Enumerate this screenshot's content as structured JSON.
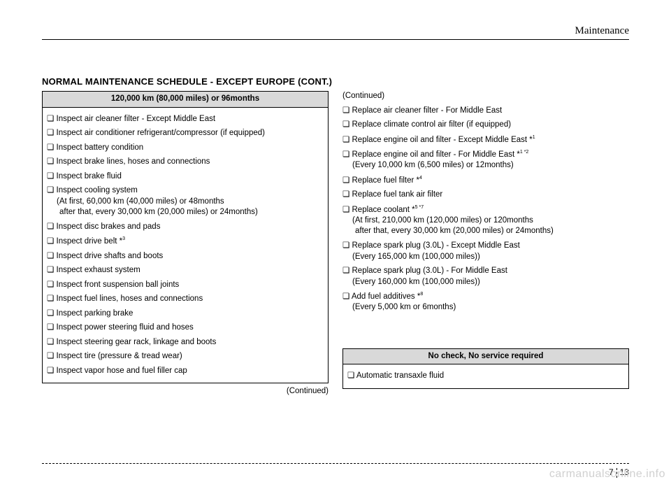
{
  "section": "Maintenance",
  "heading": "NORMAL MAINTENANCE SCHEDULE - EXCEPT EUROPE (CONT.)",
  "left": {
    "header": "120,000 km (80,000 miles) or 96months",
    "items": [
      {
        "text": "❏ Inspect air cleaner filter - Except Middle East"
      },
      {
        "text": "❏ Inspect air conditioner refrigerant/compressor (if equipped)"
      },
      {
        "text": "❏ Inspect battery condition"
      },
      {
        "text": "❏ Inspect brake lines, hoses and connections"
      },
      {
        "text": "❏ Inspect brake fluid"
      },
      {
        "text": "❏ Inspect cooling system",
        "sub1": "(At first, 60,000 km (40,000 miles) or 48months",
        "sub2": "after that, every 30,000 km (20,000 miles) or 24months)"
      },
      {
        "text": "❏ Inspect disc brakes and pads"
      },
      {
        "text": "❏ Inspect drive belt  *",
        "sup": "3"
      },
      {
        "text": "❏ Inspect drive shafts and boots"
      },
      {
        "text": "❏ Inspect exhaust system"
      },
      {
        "text": "❏ Inspect front suspension ball joints"
      },
      {
        "text": "❏ Inspect fuel lines, hoses and connections"
      },
      {
        "text": "❏ Inspect parking brake"
      },
      {
        "text": "❏ Inspect power steering fluid and hoses"
      },
      {
        "text": "❏ Inspect steering gear rack, linkage and boots"
      },
      {
        "text": "❏ Inspect tire (pressure & tread wear)"
      },
      {
        "text": "❏ Inspect vapor hose and fuel filler cap"
      }
    ],
    "continued": "(Continued)"
  },
  "right": {
    "continued_top": "(Continued)",
    "items": [
      {
        "text": "❏ Replace air cleaner filter - For Middle East"
      },
      {
        "text": "❏ Replace climate control air filter (if equipped)"
      },
      {
        "text": "❏ Replace engine oil and filter - Except Middle East *",
        "sup": "1"
      },
      {
        "text": "❏ Replace engine oil and filter - For Middle East *",
        "sup": "1 *2",
        "sub1": "(Every 10,000 km (6,500 miles) or 12months)"
      },
      {
        "text": "❏ Replace fuel filter *",
        "sup": "4"
      },
      {
        "text": "❏ Replace fuel tank air filter"
      },
      {
        "text": "❏ Replace coolant *",
        "sup": "5 *7",
        "sub1": "(At first, 210,000 km (120,000 miles) or 120months",
        "sub2": "after that, every 30,000 km (20,000 miles) or 24months)"
      },
      {
        "text": "❏ Replace spark plug (3.0L) - Except Middle East",
        "sub1": "(Every 165,000 km (100,000 miles))"
      },
      {
        "text": "❏ Replace spark plug (3.0L) - For Middle East",
        "sub1": "(Every 160,000 km (100,000 miles))"
      },
      {
        "text": "❏ Add fuel additives *",
        "sup": "8",
        "sub1": "(Every 5,000 km or 6months)"
      }
    ],
    "box2_header": "No check, No service required",
    "box2_item": "❏ Automatic transaxle fluid"
  },
  "page": {
    "chapter": "7",
    "num": "13"
  },
  "watermark": "carmanualsonline.info"
}
